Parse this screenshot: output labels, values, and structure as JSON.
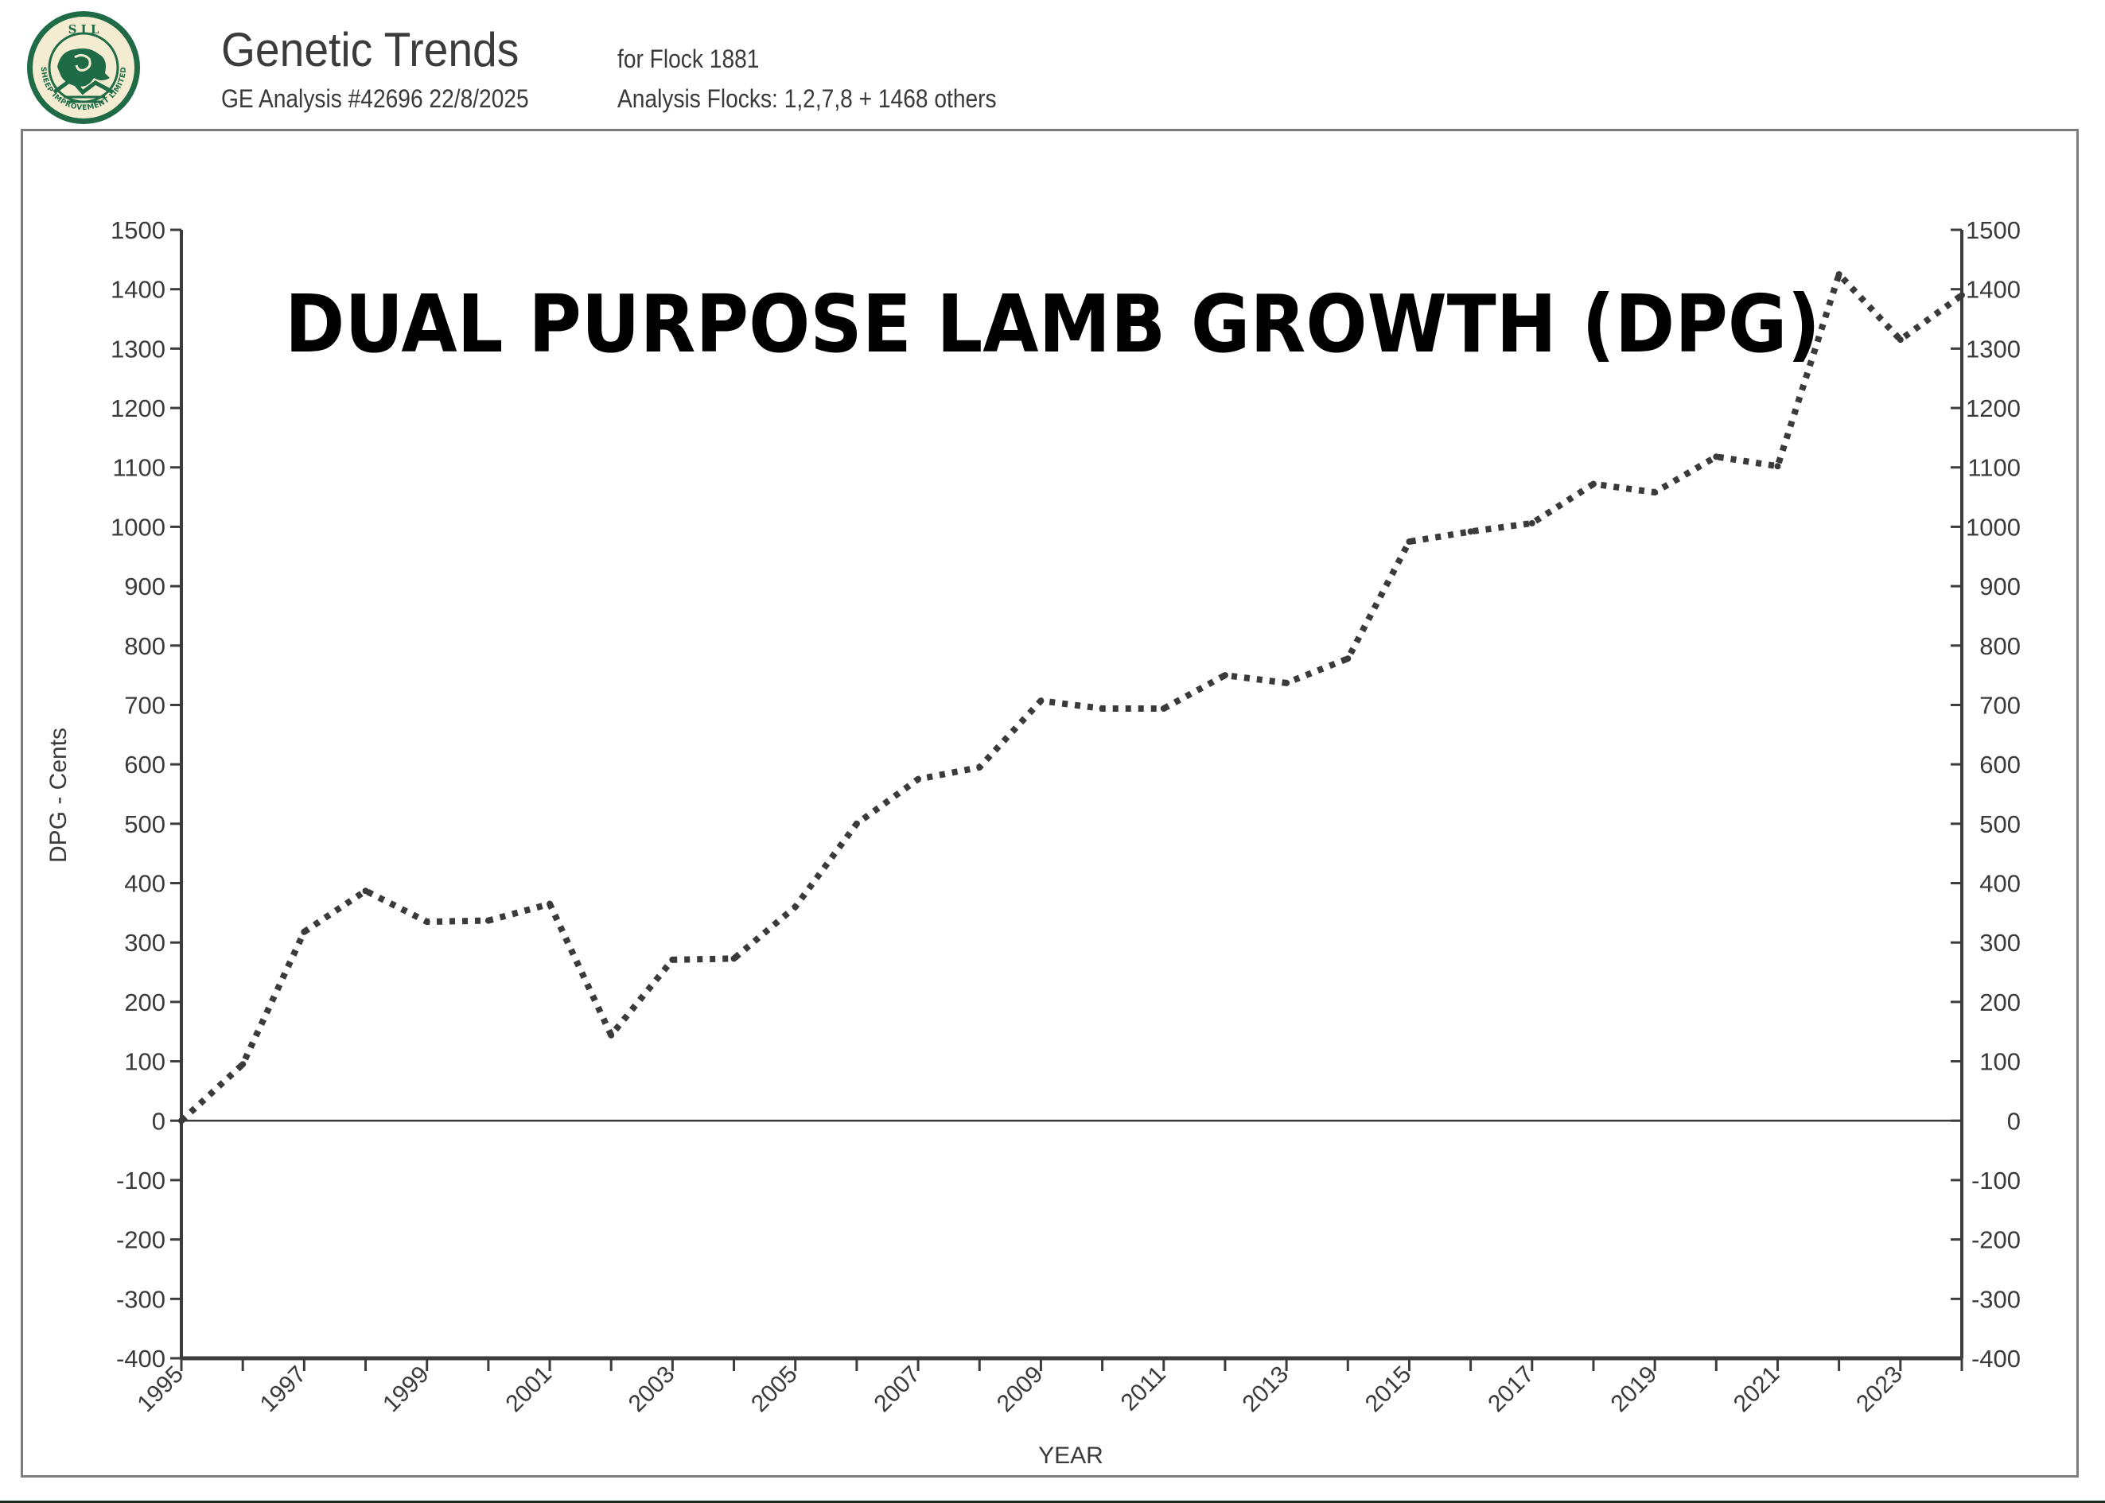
{
  "header": {
    "logo_text_top": "S I L",
    "logo_text_ring": "SHEEP IMPROVEMENT LIMITED",
    "title": "Genetic Trends",
    "flock": "for Flock 1881",
    "analysis": "GE Analysis #42696 22/8/2025",
    "analysis_flocks": "Analysis Flocks: 1,2,7,8 + 1468 others"
  },
  "colors": {
    "logo_green": "#1e6b46",
    "logo_cream": "#f3ecd0",
    "axis": "#3c3c3c",
    "line": "#3a3a3a",
    "text": "#3a3a3a"
  },
  "chart_data": {
    "type": "line",
    "title": "DUAL PURPOSE LAMB GROWTH (DPG)",
    "xlabel": "YEAR",
    "ylabel": "DPG - Cents",
    "xlim": [
      1995,
      2024
    ],
    "ylim": [
      -400,
      1500
    ],
    "yticks": [
      1500,
      1400,
      1300,
      1200,
      1100,
      1000,
      900,
      800,
      700,
      600,
      500,
      400,
      300,
      200,
      100,
      0,
      -100,
      -200,
      -300,
      -400
    ],
    "xtick_labels": [
      "1995",
      "1997",
      "1999",
      "2001",
      "2003",
      "2005",
      "2007",
      "2009",
      "2011",
      "2013",
      "2015",
      "2017",
      "2019",
      "2021",
      "2023"
    ],
    "grid": false,
    "line_style": "dotted",
    "series": [
      {
        "name": "DPG",
        "x": [
          1995,
          1996,
          1997,
          1998,
          1999,
          2000,
          2001,
          2002,
          2003,
          2004,
          2005,
          2006,
          2007,
          2008,
          2009,
          2010,
          2011,
          2012,
          2013,
          2014,
          2015,
          2016,
          2017,
          2018,
          2019,
          2020,
          2021,
          2022,
          2023,
          2024
        ],
        "values": [
          0,
          95,
          318,
          387,
          335,
          337,
          365,
          144,
          271,
          273,
          360,
          500,
          575,
          595,
          707,
          694,
          694,
          750,
          737,
          778,
          975,
          992,
          1006,
          1072,
          1058,
          1118,
          1102,
          1425,
          1315,
          1390
        ]
      }
    ]
  }
}
